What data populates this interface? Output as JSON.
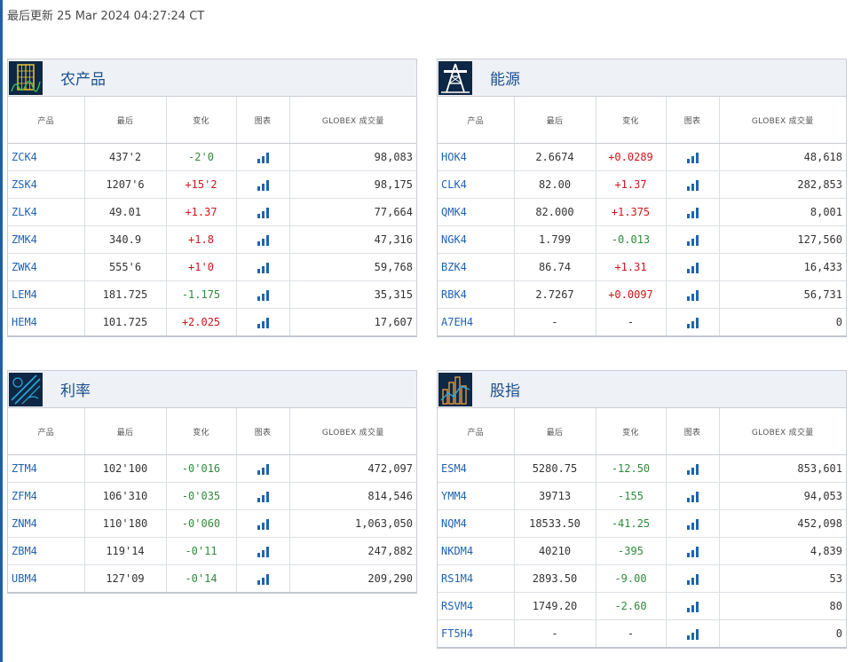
{
  "last_updated": "最后更新 25 Mar 2024 04:27:24 CT",
  "columns": [
    "产品",
    "最后",
    "变化",
    "图表",
    "GLOBEX 成交量"
  ],
  "colors": {
    "up": "#d1141b",
    "down": "#2f8a3b",
    "link": "#1f63b0",
    "header_bg": "#eef1f5"
  },
  "panels": [
    {
      "title": "农产品",
      "icon": "agriculture-icon",
      "rows": [
        {
          "symbol": "ZCK4",
          "last": "437'2",
          "change": "-2'0",
          "dir": "neg",
          "volume": "98,083"
        },
        {
          "symbol": "ZSK4",
          "last": "1207'6",
          "change": "+15'2",
          "dir": "pos",
          "volume": "98,175"
        },
        {
          "symbol": "ZLK4",
          "last": "49.01",
          "change": "+1.37",
          "dir": "pos",
          "volume": "77,664"
        },
        {
          "symbol": "ZMK4",
          "last": "340.9",
          "change": "+1.8",
          "dir": "pos",
          "volume": "47,316"
        },
        {
          "symbol": "ZWK4",
          "last": "555'6",
          "change": "+1'0",
          "dir": "pos",
          "volume": "59,768"
        },
        {
          "symbol": "LEM4",
          "last": "181.725",
          "change": "-1.175",
          "dir": "neg",
          "volume": "35,315"
        },
        {
          "symbol": "HEM4",
          "last": "101.725",
          "change": "+2.025",
          "dir": "pos",
          "volume": "17,607"
        }
      ]
    },
    {
      "title": "能源",
      "icon": "oil-rig-icon",
      "rows": [
        {
          "symbol": "HOK4",
          "last": "2.6674",
          "change": "+0.0289",
          "dir": "pos",
          "volume": "48,618"
        },
        {
          "symbol": "CLK4",
          "last": "82.00",
          "change": "+1.37",
          "dir": "pos",
          "volume": "282,853"
        },
        {
          "symbol": "QMK4",
          "last": "82.000",
          "change": "+1.375",
          "dir": "pos",
          "volume": "8,001"
        },
        {
          "symbol": "NGK4",
          "last": "1.799",
          "change": "-0.013",
          "dir": "neg",
          "volume": "127,560"
        },
        {
          "symbol": "BZK4",
          "last": "86.74",
          "change": "+1.31",
          "dir": "pos",
          "volume": "16,433"
        },
        {
          "symbol": "RBK4",
          "last": "2.7267",
          "change": "+0.0097",
          "dir": "pos",
          "volume": "56,731"
        },
        {
          "symbol": "A7EH4",
          "last": "-",
          "change": "-",
          "dir": "neu",
          "volume": "0"
        }
      ]
    },
    {
      "title": "利率",
      "icon": "interest-rates-icon",
      "rows": [
        {
          "symbol": "ZTM4",
          "last": "102'100",
          "change": "-0'016",
          "dir": "neg",
          "volume": "472,097"
        },
        {
          "symbol": "ZFM4",
          "last": "106'310",
          "change": "-0'035",
          "dir": "neg",
          "volume": "814,546"
        },
        {
          "symbol": "ZNM4",
          "last": "110'180",
          "change": "-0'060",
          "dir": "neg",
          "volume": "1,063,050"
        },
        {
          "symbol": "ZBM4",
          "last": "119'14",
          "change": "-0'11",
          "dir": "neg",
          "volume": "247,882"
        },
        {
          "symbol": "UBM4",
          "last": "127'09",
          "change": "-0'14",
          "dir": "neg",
          "volume": "209,290"
        }
      ]
    },
    {
      "title": "股指",
      "icon": "equity-index-icon",
      "rows": [
        {
          "symbol": "ESM4",
          "last": "5280.75",
          "change": "-12.50",
          "dir": "neg",
          "volume": "853,601"
        },
        {
          "symbol": "YMM4",
          "last": "39713",
          "change": "-155",
          "dir": "neg",
          "volume": "94,053"
        },
        {
          "symbol": "NQM4",
          "last": "18533.50",
          "change": "-41.25",
          "dir": "neg",
          "volume": "452,098"
        },
        {
          "symbol": "NKDM4",
          "last": "40210",
          "change": "-395",
          "dir": "neg",
          "volume": "4,839"
        },
        {
          "symbol": "RS1M4",
          "last": "2893.50",
          "change": "-9.00",
          "dir": "neg",
          "volume": "53"
        },
        {
          "symbol": "RSVM4",
          "last": "1749.20",
          "change": "-2.60",
          "dir": "neg",
          "volume": "80"
        },
        {
          "symbol": "FT5H4",
          "last": "-",
          "change": "-",
          "dir": "neu",
          "volume": "0"
        }
      ]
    }
  ]
}
